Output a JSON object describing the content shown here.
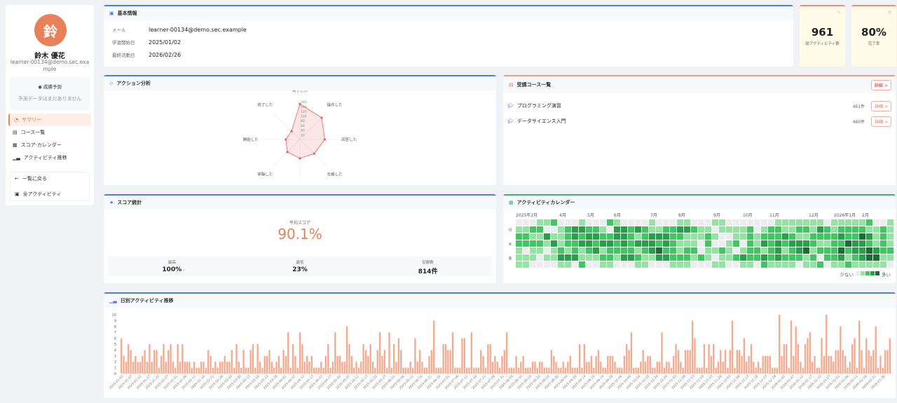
{
  "profile": {
    "avatar_char": "鈴",
    "name": "鈴木 優花",
    "email": "learner-00134@demo.sec.example"
  },
  "prediction": {
    "title": "成績予測",
    "empty": "予測データはまだありません"
  },
  "nav": {
    "items": [
      {
        "label": "サマリー",
        "icon": "chart-pie-icon",
        "active": true
      },
      {
        "label": "コース一覧",
        "icon": "book-icon"
      },
      {
        "label": "スコア·カレンダー",
        "icon": "calendar-icon"
      },
      {
        "label": "アクティビティ推移",
        "icon": "line-chart-icon"
      }
    ],
    "back": "一覧に戻る",
    "all_activity": "全アクティビティ"
  },
  "basic_info": {
    "title": "基本情報",
    "rows": [
      {
        "label": "メール",
        "value": "learner-00134@demo.sec.example"
      },
      {
        "label": "学習開始日",
        "value": "2025/01/02"
      },
      {
        "label": "最終活動日",
        "value": "2026/02/26"
      }
    ]
  },
  "stats": [
    {
      "value": "961",
      "label": "総アクティビティ数",
      "icon": "edit-icon"
    },
    {
      "value": "80%",
      "label": "完了率",
      "icon": "gear-icon"
    }
  ],
  "action": {
    "title": "アクション分析"
  },
  "courses": {
    "title": "受講コース一覧",
    "detail": "詳細 >",
    "items": [
      {
        "name": "プログラミング演習",
        "count": "461件",
        "detail": "詳細 >"
      },
      {
        "name": "データサイエンス入門",
        "count": "480件",
        "detail": "詳細 >"
      }
    ]
  },
  "score": {
    "title": "スコア統計",
    "avg_label": "平均スコア",
    "avg": "90.1%",
    "max_label": "最高",
    "max": "100%",
    "min_label": "最低",
    "min": "23%",
    "count_label": "記録数",
    "count": "814件",
    "accent": "#e8805a"
  },
  "calendar": {
    "title": "アクティビティカレンダー",
    "months": [
      "2025年2月",
      "4月",
      "5月",
      "6月",
      "7月",
      "8月",
      "9月",
      "10月",
      "11月",
      "12月",
      "2026年1月",
      "2月"
    ],
    "day_labels": [
      "月",
      "水",
      "金"
    ],
    "legend_less": "少ない",
    "legend_more": "多い",
    "colors": [
      "#ebedf0",
      "#95e2a2",
      "#45c466",
      "#2e9c4d",
      "#1f6b37"
    ],
    "levels": [
      "000112000100021000010001100011000000011111110111112001",
      "112200123322103323211223321101111201221122132122221121",
      "221131123233223321233322111210011212223211222232243121",
      "222213122332332323332321110200120213232333211224332121",
      "101101212123122221234221220112101221231234122242334322",
      "111011333111221332113322212101123223232221202231234411",
      "110000110200110001100011100011001102111101120112111110"
    ]
  },
  "radar": {
    "chart_data": {
      "type": "radar",
      "axes": [
        "完了した",
        "操作した",
        "回答した",
        "合格した",
        "試みた",
        "体験した",
        "開始した",
        "終了した"
      ],
      "values": [
        150,
        130,
        105,
        85,
        80,
        75,
        60,
        50
      ],
      "ticks": [
        20,
        40,
        60,
        80,
        100,
        120,
        140,
        160
      ],
      "max": 160,
      "color": "#e8605a"
    }
  },
  "daily": {
    "title": "日別アクティビティ推移",
    "chart_data": {
      "type": "bar",
      "ylim": [
        0,
        10
      ],
      "yticks": [
        0,
        1,
        2,
        3,
        4,
        5,
        6,
        7,
        8,
        9,
        10
      ],
      "color": "#f4aa8f",
      "x_tick_labels": [
        "2025-01-02",
        "2025-01-07",
        "2025-01-12",
        "2025-01-17",
        "2025-01-22",
        "2025-01-27",
        "2025-02-01",
        "2025-02-06",
        "2025-02-11",
        "2025-02-16",
        "2025-02-21",
        "2025-02-26",
        "2025-03-03",
        "2025-03-08",
        "2025-03-13",
        "2025-03-18",
        "2025-03-23",
        "2025-03-28",
        "2025-04-02",
        "2025-04-07",
        "2025-04-12",
        "2025-04-17",
        "2025-04-22",
        "2025-04-27",
        "2025-05-02",
        "2025-05-07",
        "2025-05-12",
        "2025-05-17",
        "2025-05-22",
        "2025-05-27",
        "2025-06-01",
        "2025-06-06",
        "2025-06-11",
        "2025-06-16",
        "2025-06-21",
        "2025-06-26",
        "2025-07-01",
        "2025-07-06",
        "2025-07-11",
        "2025-07-16",
        "2025-07-21",
        "2025-07-26",
        "2025-07-31",
        "2025-08-05",
        "2025-08-10",
        "2025-08-15",
        "2025-08-20",
        "2025-08-25",
        "2025-08-30",
        "2025-09-04",
        "2025-09-09",
        "2025-09-14",
        "2025-09-19",
        "2025-09-24",
        "2025-09-29",
        "2025-10-04",
        "2025-10-09",
        "2025-10-14",
        "2025-10-19",
        "2025-10-24",
        "2025-10-29",
        "2025-11-03",
        "2025-11-08",
        "2025-11-13",
        "2025-11-18",
        "2025-11-23",
        "2025-11-28",
        "2025-12-03",
        "2025-12-08",
        "2025-12-13",
        "2025-12-18",
        "2025-12-23",
        "2025-12-28",
        "2026-01-02",
        "2026-01-07",
        "2026-01-12",
        "2026-01-17",
        "2026-01-22",
        "2026-01-27",
        "2026-02-01",
        "2026-02-06",
        "2026-02-11",
        "2026-02-16",
        "2026-02-21",
        "2026-02-26"
      ],
      "values": [
        6,
        3,
        2,
        5,
        4,
        2,
        3,
        2,
        2,
        3,
        4,
        2,
        5,
        2,
        4,
        4,
        1,
        3,
        5,
        2,
        4,
        5,
        2,
        1,
        5,
        2,
        5,
        2,
        2,
        2,
        1,
        2,
        1,
        1,
        2,
        2,
        1,
        4,
        3,
        1,
        2,
        1,
        2,
        2,
        3,
        2,
        2,
        4,
        1,
        5,
        2,
        1,
        4,
        1,
        1,
        4,
        5,
        1,
        5,
        2,
        1,
        3,
        3,
        4,
        2,
        1,
        2,
        3,
        1,
        4,
        3,
        7,
        1,
        5,
        3,
        1,
        7,
        5,
        2,
        3,
        2,
        3,
        1,
        1,
        1,
        2,
        1,
        3,
        5,
        1,
        2,
        7,
        3,
        3,
        2,
        2,
        8,
        5,
        3,
        1,
        2,
        1,
        2,
        5,
        4,
        3,
        5,
        2,
        1,
        4,
        7,
        3,
        4,
        1,
        7,
        1,
        5,
        2,
        6,
        4,
        1,
        1,
        1,
        2,
        1,
        6,
        2,
        4,
        2,
        1,
        1,
        3,
        4,
        9,
        1,
        1,
        1,
        5,
        5,
        4,
        4,
        7,
        1,
        1,
        1,
        6,
        6,
        1,
        1,
        7,
        1,
        1,
        1,
        4,
        3,
        1,
        5,
        5,
        2,
        3,
        2,
        1,
        3,
        4,
        7,
        1,
        1,
        1,
        3,
        1,
        2,
        3,
        1,
        1,
        1,
        2,
        2,
        1,
        2,
        2,
        1,
        1,
        1,
        4,
        3,
        2,
        1,
        1,
        2,
        1,
        2,
        3,
        1,
        1,
        1,
        5,
        1,
        5,
        2,
        2,
        3,
        1,
        3,
        4,
        2,
        1,
        1,
        3,
        3,
        3,
        2,
        1,
        1,
        1,
        3,
        5,
        4,
        7,
        1,
        1,
        1,
        2,
        4,
        2,
        3,
        3,
        1,
        1,
        2,
        2,
        7,
        1,
        2,
        2,
        1,
        3,
        5,
        4,
        2,
        1,
        4,
        4,
        4,
        9,
        6,
        1,
        1,
        1,
        5,
        1,
        5,
        3,
        5,
        1,
        2,
        4,
        2,
        4,
        1,
        4,
        9,
        1,
        4,
        4,
        3,
        6,
        2,
        3,
        5,
        2,
        1,
        2,
        1,
        3,
        3,
        3,
        3,
        1,
        1,
        1,
        10,
        3,
        5,
        5,
        1,
        9,
        3,
        8,
        5,
        2,
        1,
        5,
        6,
        7,
        2,
        3,
        1,
        1,
        6,
        3,
        10,
        3,
        3,
        2,
        4,
        4,
        8,
        4,
        3,
        1,
        2,
        5,
        6,
        1,
        9,
        4,
        1,
        6,
        4,
        3,
        4,
        8,
        1,
        3,
        1,
        4,
        4,
        6
      ]
    }
  }
}
